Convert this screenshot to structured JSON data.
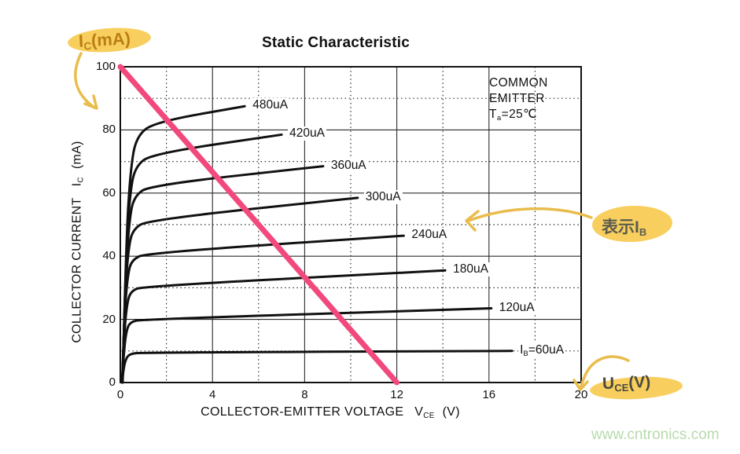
{
  "title": "Static Characteristic",
  "watermark": "www.cntronics.com",
  "colors": {
    "curve": "#111111",
    "grid": "#2b2b2b",
    "load_line": "#F2497C",
    "highlight": "#F8CF5E",
    "arrow": "#E9BC4C",
    "ic_note_text": "#BA7E15",
    "ib_note_text": "#5C5C4E",
    "uce_note_text": "#4A4A3E",
    "watermark_text": "#B7DAAB"
  },
  "annotations": {
    "ic_note": {
      "pre": "I",
      "sub": "C",
      "post": "(mA)"
    },
    "ib_note": {
      "pre": "表示I",
      "sub": "B",
      "post": ""
    },
    "uce_note": {
      "pre": "U",
      "sub": "CE",
      "post": "(V)"
    }
  },
  "inset": {
    "line1": "COMMON",
    "line2": "EMITTER",
    "t_pre": "T",
    "t_sub": "a",
    "t_post": "=25℃"
  },
  "axes": {
    "x": {
      "title": "COLLECTOR-EMITTER VOLTAGE",
      "sym": "V",
      "sym_sub": "CE",
      "unit": "(V)",
      "ticks": [
        "0",
        "4",
        "8",
        "12",
        "16",
        "20"
      ]
    },
    "y": {
      "title": "COLLECTOR CURRENT",
      "sym": "I",
      "sym_sub": "C",
      "unit": "(mA)",
      "ticks": [
        "0",
        "20",
        "40",
        "60",
        "80",
        "100"
      ]
    }
  },
  "chart_data": {
    "type": "line",
    "title": "Static Characteristic",
    "subtitle": "COMMON EMITTER Ta=25°C",
    "xlabel": "COLLECTOR-EMITTER VOLTAGE VCE (V)",
    "ylabel": "COLLECTOR CURRENT IC (mA)",
    "xlim": [
      0,
      20
    ],
    "ylim": [
      0,
      100
    ],
    "x_ticks": [
      0,
      4,
      8,
      12,
      16,
      20
    ],
    "y_ticks": [
      0,
      20,
      40,
      60,
      80,
      100
    ],
    "grid": {
      "x_solid": [
        4,
        8,
        12,
        16
      ],
      "x_dotted": [
        2,
        6,
        10,
        14,
        18
      ],
      "y_solid": [
        20,
        40,
        60,
        80
      ],
      "y_dotted": [
        10,
        30,
        50,
        70,
        90
      ]
    },
    "load_line": {
      "from": [
        0,
        100
      ],
      "to": [
        12,
        0
      ]
    },
    "series": [
      {
        "ib_uA": 480,
        "label_pre": "",
        "label_sub": "",
        "label_post": "480uA",
        "points": [
          [
            0.1,
            0
          ],
          [
            0.25,
            45
          ],
          [
            0.45,
            68
          ],
          [
            0.7,
            78
          ],
          [
            1.5,
            82.5
          ],
          [
            5.4,
            87.5
          ]
        ]
      },
      {
        "ib_uA": 420,
        "label_pre": "",
        "label_sub": "",
        "label_post": "420uA",
        "points": [
          [
            0.1,
            0
          ],
          [
            0.24,
            40
          ],
          [
            0.42,
            60
          ],
          [
            0.65,
            68.5
          ],
          [
            1.4,
            72.5
          ],
          [
            7.0,
            78.5
          ]
        ]
      },
      {
        "ib_uA": 360,
        "label_pre": "",
        "label_sub": "",
        "label_post": "360uA",
        "points": [
          [
            0.09,
            0
          ],
          [
            0.22,
            34
          ],
          [
            0.4,
            52
          ],
          [
            0.6,
            59
          ],
          [
            1.3,
            62.5
          ],
          [
            8.8,
            68.5
          ]
        ]
      },
      {
        "ib_uA": 300,
        "label_pre": "",
        "label_sub": "",
        "label_post": "300uA",
        "points": [
          [
            0.09,
            0
          ],
          [
            0.2,
            28
          ],
          [
            0.36,
            43
          ],
          [
            0.55,
            48.5
          ],
          [
            1.2,
            51.5
          ],
          [
            10.3,
            58.5
          ]
        ]
      },
      {
        "ib_uA": 240,
        "label_pre": "",
        "label_sub": "",
        "label_post": "240uA",
        "points": [
          [
            0.08,
            0
          ],
          [
            0.18,
            22
          ],
          [
            0.33,
            34.5
          ],
          [
            0.5,
            38.8
          ],
          [
            1.1,
            41
          ],
          [
            12.3,
            46.5
          ]
        ]
      },
      {
        "ib_uA": 180,
        "label_pre": "",
        "label_sub": "",
        "label_post": "180uA",
        "points": [
          [
            0.08,
            0
          ],
          [
            0.17,
            16
          ],
          [
            0.3,
            25.5
          ],
          [
            0.47,
            29
          ],
          [
            1.0,
            30.5
          ],
          [
            14.1,
            35.5
          ]
        ]
      },
      {
        "ib_uA": 120,
        "label_pre": "",
        "label_sub": "",
        "label_post": "120uA",
        "points": [
          [
            0.07,
            0
          ],
          [
            0.16,
            10.5
          ],
          [
            0.28,
            17
          ],
          [
            0.45,
            19.2
          ],
          [
            0.95,
            20
          ],
          [
            16.1,
            23.5
          ]
        ]
      },
      {
        "ib_uA": 60,
        "label_pre": "I",
        "label_sub": "B",
        "label_post": "=60uA",
        "points": [
          [
            0.07,
            0
          ],
          [
            0.15,
            5
          ],
          [
            0.27,
            8
          ],
          [
            0.45,
            9.1
          ],
          [
            0.9,
            9.5
          ],
          [
            17.0,
            10
          ]
        ]
      }
    ]
  }
}
